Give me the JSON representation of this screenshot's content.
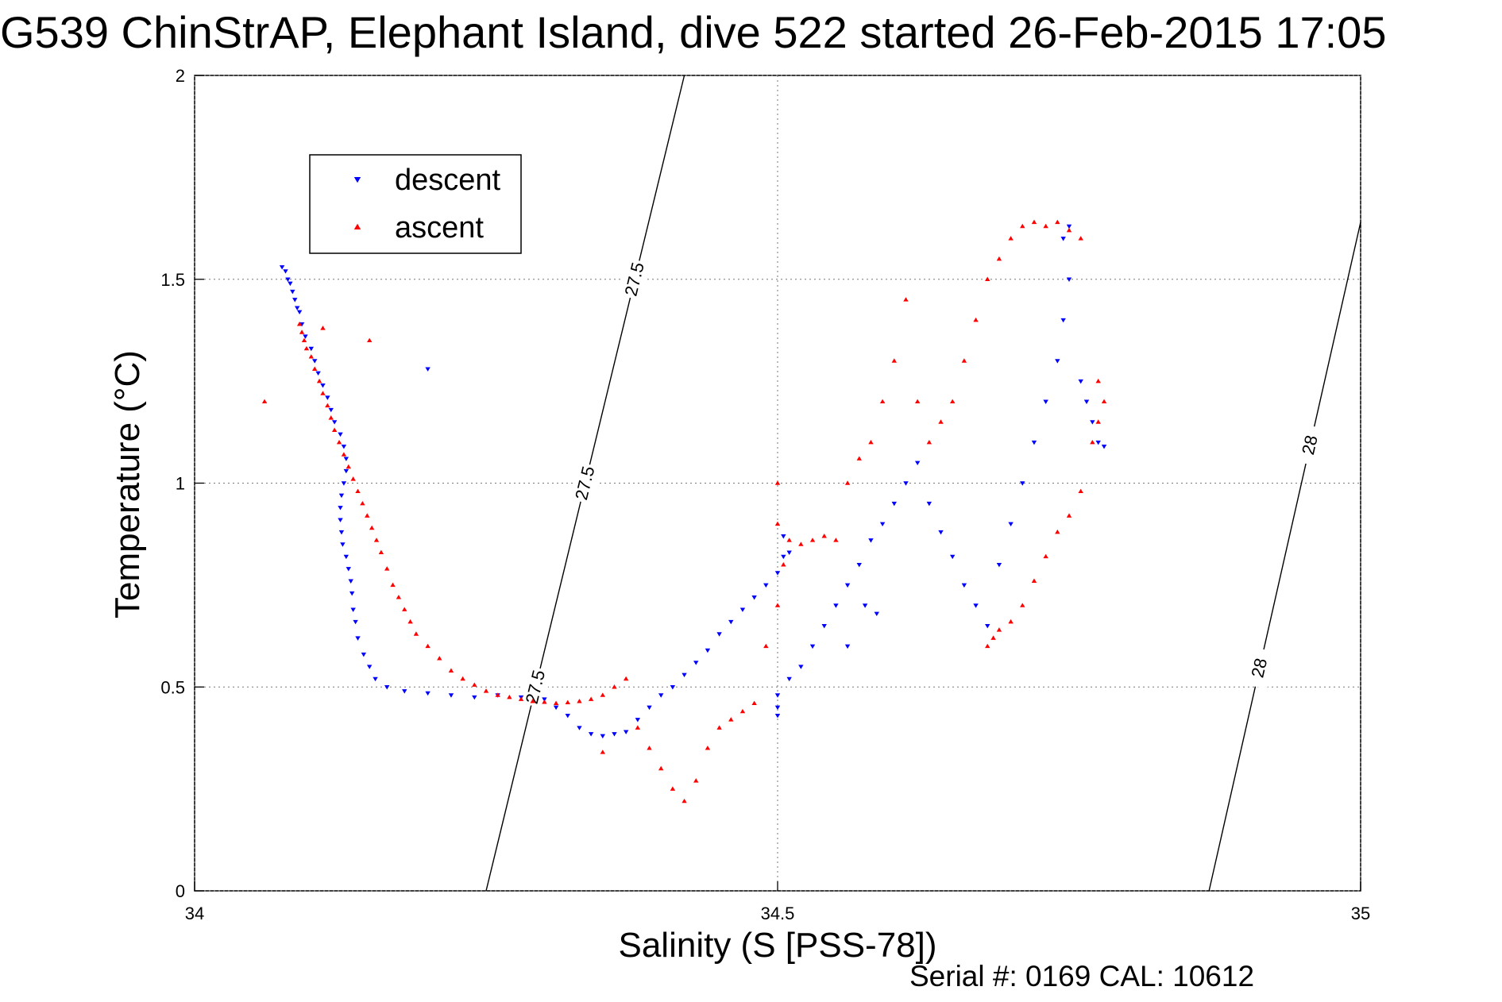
{
  "chart_data": {
    "type": "scatter",
    "title": "G539 ChinStrAP, Elephant Island, dive 522 started 26-Feb-2015 17:05",
    "xlabel": "Salinity (S [PSS-78])",
    "ylabel": "Temperature (°C)",
    "footer": "Serial #: 0169 CAL: 10612",
    "xlim": [
      34,
      35
    ],
    "ylim": [
      0,
      2
    ],
    "x_ticks": [
      34,
      34.5,
      35
    ],
    "x_tick_labels": [
      "34",
      "34.5",
      "35"
    ],
    "y_ticks": [
      0,
      0.5,
      1,
      1.5,
      2
    ],
    "y_tick_labels": [
      "0",
      "0.5",
      "1",
      "1.5",
      "2"
    ],
    "grid": true,
    "legend_position": "upper-left",
    "series": [
      {
        "name": "descent",
        "color": "#0000ff",
        "marker": "triangle-down",
        "points": [
          [
            34.075,
            1.53
          ],
          [
            34.078,
            1.52
          ],
          [
            34.08,
            1.5
          ],
          [
            34.082,
            1.49
          ],
          [
            34.084,
            1.47
          ],
          [
            34.086,
            1.45
          ],
          [
            34.088,
            1.43
          ],
          [
            34.09,
            1.42
          ],
          [
            34.092,
            1.39
          ],
          [
            34.095,
            1.36
          ],
          [
            34.1,
            1.33
          ],
          [
            34.103,
            1.3
          ],
          [
            34.106,
            1.27
          ],
          [
            34.11,
            1.24
          ],
          [
            34.114,
            1.21
          ],
          [
            34.117,
            1.18
          ],
          [
            34.12,
            1.15
          ],
          [
            34.125,
            1.12
          ],
          [
            34.128,
            1.09
          ],
          [
            34.13,
            1.06
          ],
          [
            34.13,
            1.03
          ],
          [
            34.128,
            1.0
          ],
          [
            34.126,
            0.97
          ],
          [
            34.125,
            0.94
          ],
          [
            34.125,
            0.91
          ],
          [
            34.126,
            0.88
          ],
          [
            34.127,
            0.85
          ],
          [
            34.13,
            0.82
          ],
          [
            34.132,
            0.79
          ],
          [
            34.134,
            0.76
          ],
          [
            34.135,
            0.73
          ],
          [
            34.136,
            0.69
          ],
          [
            34.138,
            0.66
          ],
          [
            34.14,
            0.62
          ],
          [
            34.145,
            0.58
          ],
          [
            34.15,
            0.55
          ],
          [
            34.155,
            0.52
          ],
          [
            34.165,
            0.5
          ],
          [
            34.18,
            0.49
          ],
          [
            34.2,
            0.485
          ],
          [
            34.22,
            0.48
          ],
          [
            34.24,
            0.475
          ],
          [
            34.26,
            0.48
          ],
          [
            34.28,
            0.475
          ],
          [
            34.3,
            0.47
          ],
          [
            34.31,
            0.45
          ],
          [
            34.32,
            0.43
          ],
          [
            34.33,
            0.4
          ],
          [
            34.34,
            0.385
          ],
          [
            34.35,
            0.38
          ],
          [
            34.36,
            0.385
          ],
          [
            34.37,
            0.39
          ],
          [
            34.38,
            0.42
          ],
          [
            34.39,
            0.45
          ],
          [
            34.4,
            0.48
          ],
          [
            34.41,
            0.5
          ],
          [
            34.42,
            0.53
          ],
          [
            34.43,
            0.56
          ],
          [
            34.44,
            0.59
          ],
          [
            34.45,
            0.63
          ],
          [
            34.46,
            0.66
          ],
          [
            34.47,
            0.69
          ],
          [
            34.48,
            0.72
          ],
          [
            34.49,
            0.75
          ],
          [
            34.5,
            0.78
          ],
          [
            34.505,
            0.82
          ],
          [
            34.51,
            0.83
          ],
          [
            34.505,
            0.87
          ],
          [
            34.5,
            0.48
          ],
          [
            34.5,
            0.45
          ],
          [
            34.5,
            0.43
          ],
          [
            34.51,
            0.52
          ],
          [
            34.52,
            0.55
          ],
          [
            34.53,
            0.6
          ],
          [
            34.54,
            0.65
          ],
          [
            34.55,
            0.7
          ],
          [
            34.56,
            0.75
          ],
          [
            34.57,
            0.8
          ],
          [
            34.58,
            0.86
          ],
          [
            34.59,
            0.9
          ],
          [
            34.6,
            0.95
          ],
          [
            34.61,
            1.0
          ],
          [
            34.62,
            1.05
          ],
          [
            34.63,
            0.95
          ],
          [
            34.64,
            0.88
          ],
          [
            34.65,
            0.82
          ],
          [
            34.66,
            0.75
          ],
          [
            34.67,
            0.7
          ],
          [
            34.68,
            0.65
          ],
          [
            34.69,
            0.8
          ],
          [
            34.7,
            0.9
          ],
          [
            34.71,
            1.0
          ],
          [
            34.72,
            1.1
          ],
          [
            34.73,
            1.2
          ],
          [
            34.74,
            1.3
          ],
          [
            34.745,
            1.4
          ],
          [
            34.75,
            1.5
          ],
          [
            34.745,
            1.6
          ],
          [
            34.75,
            1.63
          ],
          [
            34.76,
            1.25
          ],
          [
            34.765,
            1.2
          ],
          [
            34.77,
            1.15
          ],
          [
            34.775,
            1.1
          ],
          [
            34.78,
            1.09
          ],
          [
            34.2,
            1.28
          ],
          [
            34.56,
            0.6
          ],
          [
            34.575,
            0.7
          ],
          [
            34.585,
            0.68
          ]
        ]
      },
      {
        "name": "ascent",
        "color": "#ff0000",
        "marker": "triangle-up",
        "points": [
          [
            34.09,
            1.39
          ],
          [
            34.092,
            1.37
          ],
          [
            34.094,
            1.35
          ],
          [
            34.096,
            1.33
          ],
          [
            34.1,
            1.31
          ],
          [
            34.103,
            1.28
          ],
          [
            34.107,
            1.25
          ],
          [
            34.11,
            1.22
          ],
          [
            34.114,
            1.19
          ],
          [
            34.117,
            1.16
          ],
          [
            34.12,
            1.13
          ],
          [
            34.124,
            1.1
          ],
          [
            34.128,
            1.07
          ],
          [
            34.132,
            1.04
          ],
          [
            34.136,
            1.01
          ],
          [
            34.14,
            0.98
          ],
          [
            34.144,
            0.95
          ],
          [
            34.148,
            0.92
          ],
          [
            34.152,
            0.89
          ],
          [
            34.156,
            0.86
          ],
          [
            34.16,
            0.83
          ],
          [
            34.165,
            0.79
          ],
          [
            34.17,
            0.75
          ],
          [
            34.175,
            0.72
          ],
          [
            34.18,
            0.69
          ],
          [
            34.185,
            0.66
          ],
          [
            34.19,
            0.63
          ],
          [
            34.2,
            0.6
          ],
          [
            34.21,
            0.57
          ],
          [
            34.22,
            0.54
          ],
          [
            34.23,
            0.52
          ],
          [
            34.24,
            0.505
          ],
          [
            34.25,
            0.49
          ],
          [
            34.26,
            0.48
          ],
          [
            34.27,
            0.475
          ],
          [
            34.28,
            0.47
          ],
          [
            34.29,
            0.465
          ],
          [
            34.3,
            0.463
          ],
          [
            34.31,
            0.46
          ],
          [
            34.32,
            0.462
          ],
          [
            34.33,
            0.465
          ],
          [
            34.34,
            0.47
          ],
          [
            34.35,
            0.48
          ],
          [
            34.36,
            0.5
          ],
          [
            34.37,
            0.52
          ],
          [
            34.38,
            0.4
          ],
          [
            34.39,
            0.35
          ],
          [
            34.4,
            0.3
          ],
          [
            34.41,
            0.25
          ],
          [
            34.42,
            0.22
          ],
          [
            34.43,
            0.27
          ],
          [
            34.44,
            0.35
          ],
          [
            34.45,
            0.4
          ],
          [
            34.46,
            0.42
          ],
          [
            34.47,
            0.44
          ],
          [
            34.48,
            0.46
          ],
          [
            34.49,
            0.6
          ],
          [
            34.5,
            0.7
          ],
          [
            34.505,
            0.8
          ],
          [
            34.5,
            0.9
          ],
          [
            34.5,
            1.0
          ],
          [
            34.51,
            0.86
          ],
          [
            34.52,
            0.85
          ],
          [
            34.53,
            0.86
          ],
          [
            34.54,
            0.87
          ],
          [
            34.55,
            0.86
          ],
          [
            34.56,
            1.0
          ],
          [
            34.57,
            1.06
          ],
          [
            34.58,
            1.1
          ],
          [
            34.59,
            1.2
          ],
          [
            34.6,
            1.3
          ],
          [
            34.61,
            1.45
          ],
          [
            34.62,
            1.2
          ],
          [
            34.63,
            1.1
          ],
          [
            34.64,
            1.15
          ],
          [
            34.65,
            1.2
          ],
          [
            34.66,
            1.3
          ],
          [
            34.67,
            1.4
          ],
          [
            34.68,
            1.5
          ],
          [
            34.69,
            1.55
          ],
          [
            34.7,
            1.6
          ],
          [
            34.71,
            1.63
          ],
          [
            34.72,
            1.64
          ],
          [
            34.73,
            1.63
          ],
          [
            34.74,
            1.64
          ],
          [
            34.75,
            1.62
          ],
          [
            34.76,
            1.6
          ],
          [
            34.775,
            1.25
          ],
          [
            34.78,
            1.2
          ],
          [
            34.775,
            1.15
          ],
          [
            34.77,
            1.1
          ],
          [
            34.68,
            0.6
          ],
          [
            34.685,
            0.62
          ],
          [
            34.69,
            0.64
          ],
          [
            34.7,
            0.66
          ],
          [
            34.71,
            0.7
          ],
          [
            34.72,
            0.76
          ],
          [
            34.73,
            0.82
          ],
          [
            34.74,
            0.88
          ],
          [
            34.75,
            0.92
          ],
          [
            34.76,
            0.98
          ],
          [
            34.15,
            1.35
          ],
          [
            34.11,
            1.38
          ],
          [
            34.35,
            0.34
          ],
          [
            34.06,
            1.2
          ]
        ]
      }
    ],
    "isopycnals": [
      {
        "name": "27.5",
        "labels": [
          "27.5",
          "27.5",
          "27.5"
        ],
        "points": [
          [
            34.25,
            0.0
          ],
          [
            34.42,
            2.0
          ]
        ]
      },
      {
        "name": "28",
        "labels": [
          "28",
          "28"
        ],
        "points": [
          [
            34.87,
            0.0
          ],
          [
            35.0,
            1.64
          ]
        ]
      }
    ]
  }
}
